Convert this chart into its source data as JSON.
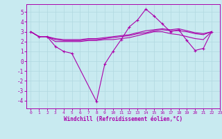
{
  "background_color": "#c8eaf0",
  "grid_color": "#b0d8e0",
  "line_color": "#aa00aa",
  "xlabel": "Windchill (Refroidissement éolien,°C)",
  "ylim": [
    -4.8,
    5.8
  ],
  "xlim": [
    -0.5,
    23
  ],
  "yticks": [
    -4,
    -3,
    -2,
    -1,
    0,
    1,
    2,
    3,
    4,
    5
  ],
  "xticks": [
    0,
    1,
    2,
    3,
    4,
    5,
    6,
    7,
    8,
    9,
    10,
    11,
    12,
    13,
    14,
    15,
    16,
    17,
    18,
    19,
    20,
    21,
    22,
    23
  ],
  "series": [
    [
      3.0,
      2.5,
      2.5,
      1.5,
      1.0,
      0.8,
      null,
      null,
      -4.1,
      -0.3,
      1.0,
      2.2,
      3.5,
      4.2,
      5.3,
      4.6,
      3.8,
      3.0,
      3.2,
      2.1,
      1.1,
      1.3,
      3.0,
      null
    ],
    [
      3.0,
      2.5,
      2.5,
      2.0,
      2.0,
      2.0,
      2.0,
      2.1,
      2.1,
      2.2,
      2.2,
      2.3,
      2.4,
      2.6,
      2.8,
      3.0,
      3.0,
      2.8,
      2.7,
      2.5,
      2.3,
      2.2,
      3.0,
      null
    ],
    [
      3.0,
      2.5,
      2.5,
      2.2,
      2.1,
      2.1,
      2.1,
      2.2,
      2.2,
      2.3,
      2.4,
      2.5,
      2.6,
      2.8,
      2.9,
      3.1,
      3.2,
      3.1,
      3.1,
      3.0,
      2.8,
      2.7,
      3.0,
      null
    ],
    [
      3.0,
      2.5,
      2.5,
      2.3,
      2.2,
      2.2,
      2.2,
      2.3,
      2.3,
      2.4,
      2.5,
      2.6,
      2.7,
      2.9,
      3.1,
      3.2,
      3.3,
      3.2,
      3.3,
      3.1,
      2.9,
      2.8,
      3.0,
      null
    ]
  ],
  "marker": "+"
}
